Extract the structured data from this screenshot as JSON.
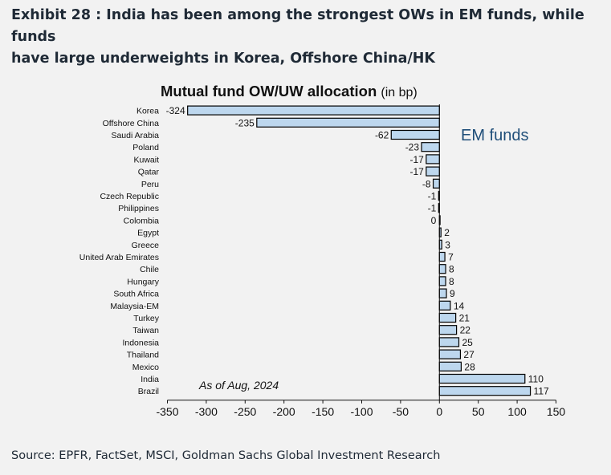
{
  "exhibit": {
    "title_line1": "Exhibit 28 : India has been among the strongest OWs in EM funds, while funds",
    "title_line2": "have large underweights in Korea, Offshore China/HK"
  },
  "source": "Source: EPFR, FactSet, MSCI, Goldman Sachs Global Investment Research",
  "colors": {
    "bar_fill": "#bdd7ee",
    "bar_stroke": "#000000",
    "emfunds_text": "#1f4e79",
    "background": "#f2f2f2"
  },
  "chart_data": {
    "type": "bar",
    "orientation": "horizontal",
    "title": "Mutual fund OW/UW allocation",
    "title_unit": "(in bp)",
    "inset_label": "EM funds",
    "annotation": "As of Aug, 2024",
    "xlim": [
      -350,
      150
    ],
    "xticks": [
      -350,
      -300,
      -250,
      -200,
      -150,
      -100,
      -50,
      0,
      50,
      100,
      150
    ],
    "categories": [
      "Korea",
      "Offshore China",
      "Saudi Arabia",
      "Poland",
      "Kuwait",
      "Qatar",
      "Peru",
      "Czech Republic",
      "Philippines",
      "Colombia",
      "Egypt",
      "Greece",
      "United Arab Emirates",
      "Chile",
      "Hungary",
      "South Africa",
      "Malaysia-EM",
      "Turkey",
      "Taiwan",
      "Indonesia",
      "Thailand",
      "Mexico",
      "India",
      "Brazil"
    ],
    "values": [
      -324,
      -235,
      -62,
      -23,
      -17,
      -17,
      -8,
      -1,
      -1,
      0,
      2,
      3,
      7,
      8,
      8,
      9,
      14,
      21,
      22,
      25,
      27,
      28,
      110,
      117
    ],
    "value_labels": [
      "-324",
      "-235",
      "-62",
      "-23",
      "-17",
      "-17",
      "-8",
      "-1",
      "-1",
      "0",
      "2",
      "3",
      "7",
      "8",
      "8",
      "9",
      "14",
      "21",
      "22",
      "25",
      "27",
      "28",
      "110",
      "117"
    ],
    "grid": false
  }
}
